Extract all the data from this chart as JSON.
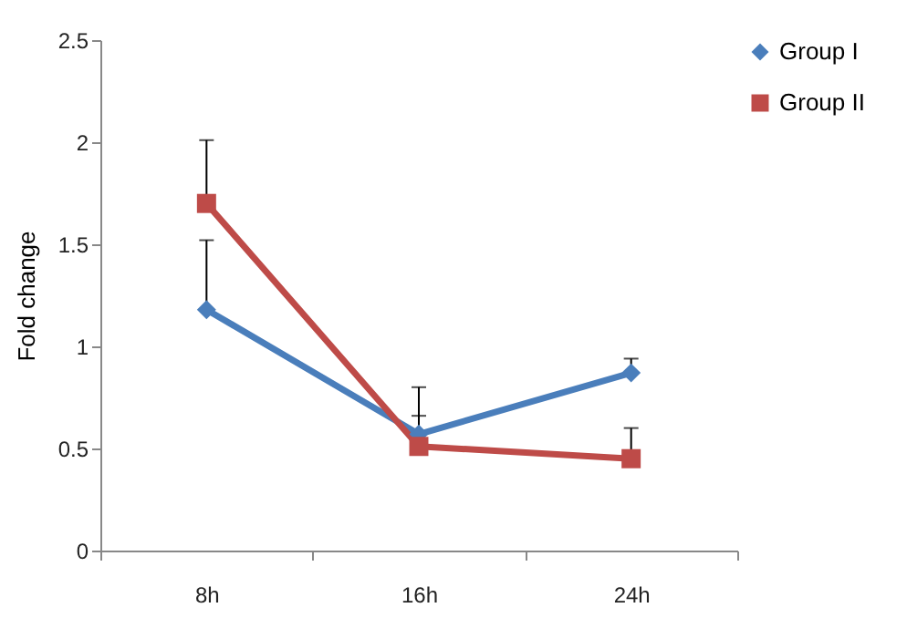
{
  "chart_data": {
    "type": "line",
    "ylabel": "Fold change",
    "categories": [
      "8h",
      "16h",
      "24h"
    ],
    "series": [
      {
        "name": "Group I",
        "color": "#4a7ebb",
        "marker": "diamond",
        "values": [
          1.18,
          0.57,
          0.87
        ],
        "errors": [
          [
            1.18,
            1.52
          ],
          [
            0.57,
            0.66
          ],
          [
            0.87,
            0.94
          ]
        ]
      },
      {
        "name": "Group II",
        "color": "#be4b48",
        "marker": "square",
        "values": [
          1.7,
          0.51,
          0.45
        ],
        "errors": [
          [
            1.7,
            2.01
          ],
          [
            0.51,
            0.8
          ],
          [
            0.45,
            0.6
          ]
        ]
      }
    ],
    "ylim": [
      0,
      2.5
    ],
    "yticks": [
      0,
      0.5,
      1,
      1.5,
      2,
      2.5
    ],
    "grid": false,
    "legend": "right"
  }
}
